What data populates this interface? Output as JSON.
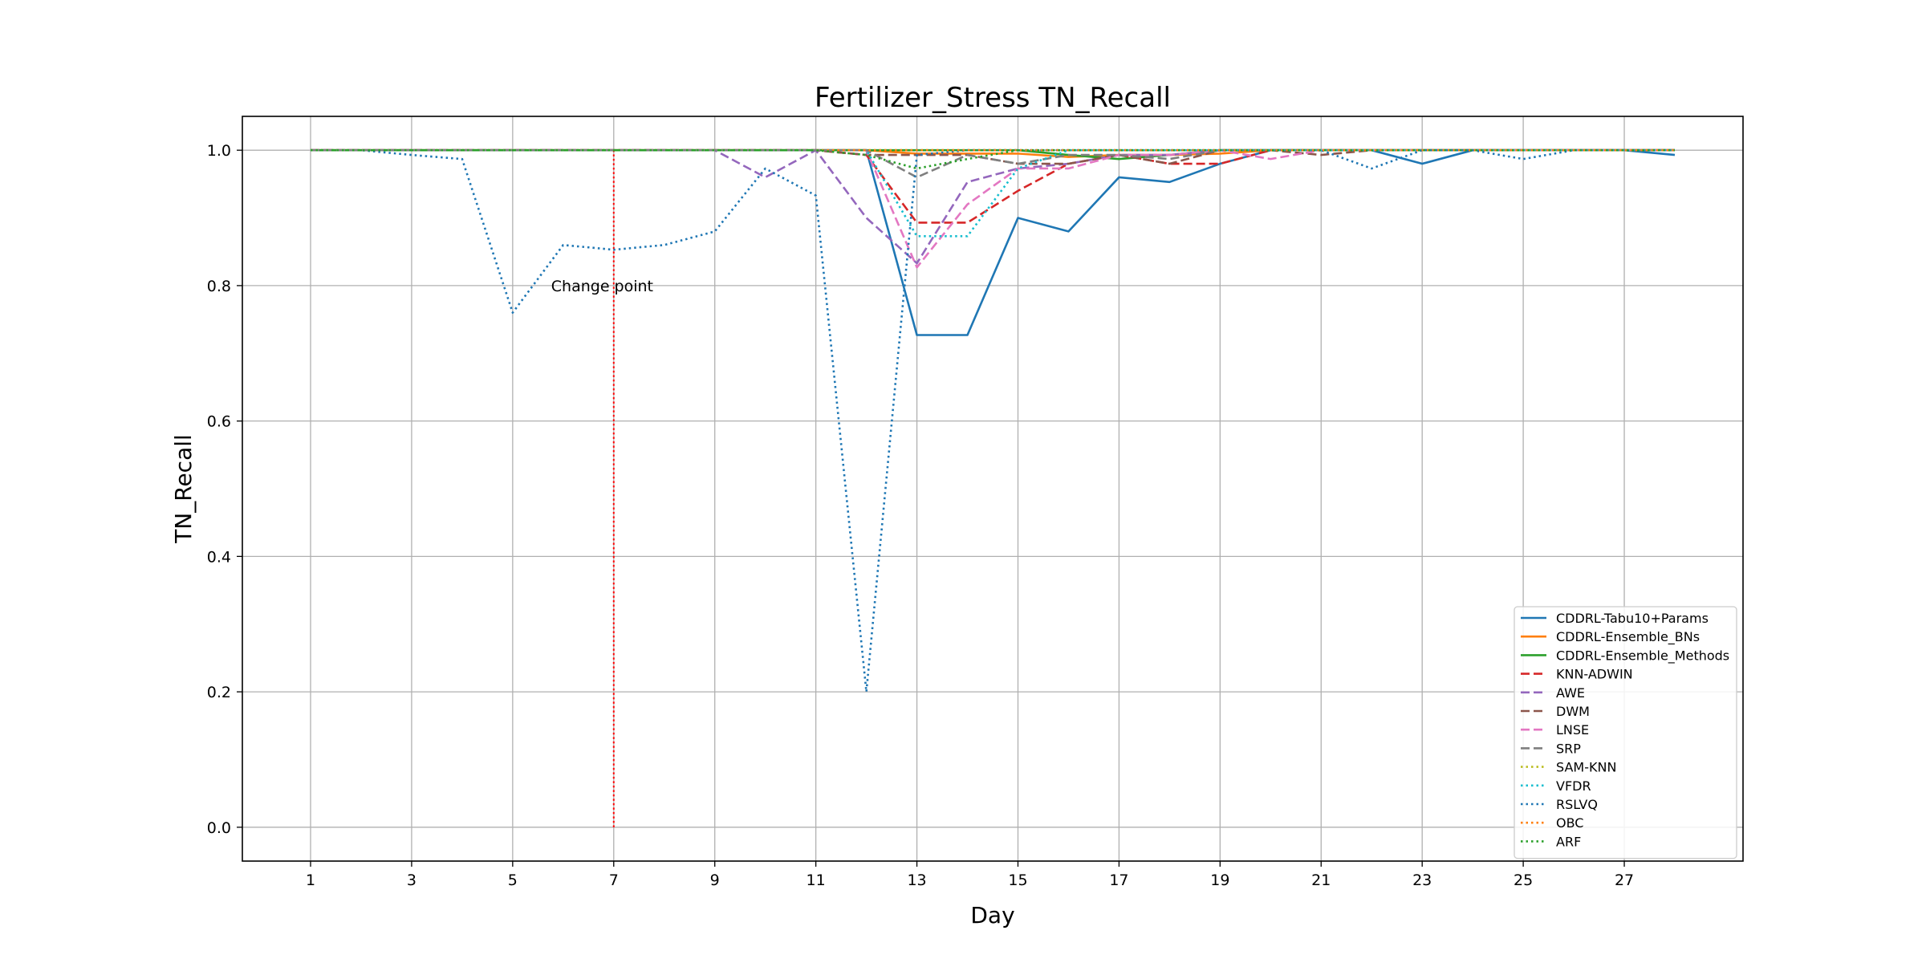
{
  "chart_data": {
    "type": "line",
    "title": "Fertilizer_Stress TN_Recall",
    "xlabel": "Day",
    "ylabel": "TN_Recall",
    "xlim": [
      -0.35,
      29.35
    ],
    "ylim": [
      -0.05,
      1.05
    ],
    "xticks": [
      1,
      3,
      5,
      7,
      9,
      11,
      13,
      15,
      17,
      19,
      21,
      23,
      25,
      27
    ],
    "yticks": [
      0.0,
      0.2,
      0.4,
      0.6,
      0.8,
      1.0
    ],
    "ytick_labels": [
      "0.0",
      "0.2",
      "0.4",
      "0.6",
      "0.8",
      "1.0"
    ],
    "grid": true,
    "legend_position": "lower-right",
    "x": [
      1,
      2,
      3,
      4,
      5,
      6,
      7,
      8,
      9,
      10,
      11,
      12,
      13,
      14,
      15,
      16,
      17,
      18,
      19,
      20,
      21,
      22,
      23,
      24,
      25,
      26,
      27,
      28
    ],
    "change_point": {
      "x": 7,
      "label": "Change point",
      "color": "#ff0000"
    },
    "series": [
      {
        "name": "CDDRL-Tabu10+Params",
        "color": "#1f77b4",
        "style": "solid",
        "values": [
          1,
          1,
          1,
          1,
          1,
          1,
          1,
          1,
          1,
          1,
          1,
          1,
          0.727,
          0.727,
          0.9,
          0.88,
          0.96,
          0.953,
          0.98,
          1,
          1,
          1,
          0.98,
          1,
          1,
          1,
          1,
          0.993
        ]
      },
      {
        "name": "CDDRL-Ensemble_BNs",
        "color": "#ff7f0e",
        "style": "solid",
        "values": [
          1,
          1,
          1,
          1,
          1,
          1,
          1,
          1,
          1,
          1,
          1,
          1,
          0.995,
          0.995,
          0.995,
          0.99,
          0.993,
          0.993,
          0.995,
          1,
          1,
          1,
          1,
          1,
          1,
          1,
          1,
          1
        ]
      },
      {
        "name": "CDDRL-Ensemble_Methods",
        "color": "#2ca02c",
        "style": "solid",
        "values": [
          1,
          1,
          1,
          1,
          1,
          1,
          1,
          1,
          1,
          1,
          1,
          1,
          1,
          1,
          1,
          0.993,
          0.987,
          0.993,
          1,
          1,
          1,
          1,
          1,
          1,
          1,
          1,
          1,
          1
        ]
      },
      {
        "name": "KNN-ADWIN",
        "color": "#d62728",
        "style": "dashed",
        "values": [
          1,
          1,
          1,
          1,
          1,
          1,
          1,
          1,
          1,
          1,
          1,
          0.993,
          0.893,
          0.893,
          0.94,
          0.98,
          0.993,
          0.98,
          0.98,
          1,
          1,
          1,
          1,
          1,
          1,
          1,
          1,
          1
        ]
      },
      {
        "name": "AWE",
        "color": "#9467bd",
        "style": "dashed",
        "values": [
          1,
          1,
          1,
          1,
          1,
          1,
          1,
          1,
          1,
          0.96,
          1,
          0.9,
          0.833,
          0.953,
          0.973,
          0.98,
          0.993,
          0.993,
          1,
          1,
          1,
          1,
          1,
          1,
          1,
          1,
          1,
          1
        ]
      },
      {
        "name": "DWM",
        "color": "#8c564b",
        "style": "dashed",
        "values": [
          1,
          1,
          1,
          1,
          1,
          1,
          1,
          1,
          1,
          1,
          1,
          0.993,
          0.993,
          0.993,
          0.98,
          0.98,
          0.993,
          0.98,
          1,
          1,
          0.993,
          1,
          1,
          1,
          1,
          1,
          1,
          1
        ]
      },
      {
        "name": "LNSE",
        "color": "#e377c2",
        "style": "dashed",
        "values": [
          1,
          1,
          1,
          1,
          1,
          1,
          1,
          1,
          1,
          1,
          1,
          1,
          0.827,
          0.92,
          0.973,
          0.973,
          0.993,
          0.993,
          1,
          0.987,
          1,
          1,
          1,
          1,
          1,
          1,
          1,
          1
        ]
      },
      {
        "name": "SRP",
        "color": "#7f7f7f",
        "style": "dashed",
        "values": [
          1,
          1,
          1,
          1,
          1,
          1,
          1,
          1,
          1,
          1,
          1,
          1,
          0.96,
          0.993,
          0.98,
          0.993,
          0.993,
          0.987,
          1,
          1,
          1,
          1,
          1,
          1,
          1,
          1,
          1,
          1
        ]
      },
      {
        "name": "SAM-KNN",
        "color": "#bcbd22",
        "style": "dotted",
        "values": [
          1,
          1,
          1,
          1,
          1,
          1,
          1,
          1,
          1,
          1,
          1,
          1,
          1,
          1,
          1,
          1,
          1,
          1,
          1,
          1,
          1,
          1,
          1,
          1,
          1,
          1,
          1,
          1
        ]
      },
      {
        "name": "VFDR",
        "color": "#17becf",
        "style": "dotted",
        "values": [
          1,
          1,
          1,
          1,
          1,
          1,
          1,
          1,
          1,
          1,
          1,
          1,
          0.873,
          0.873,
          0.973,
          1,
          1,
          1,
          1,
          1,
          1,
          1,
          1,
          1,
          1,
          1,
          1,
          1
        ]
      },
      {
        "name": "RSLVQ",
        "color": "#1f77b4",
        "style": "dotted",
        "values": [
          1,
          1,
          0.993,
          0.987,
          0.76,
          0.86,
          0.853,
          0.86,
          0.88,
          0.973,
          0.933,
          0.2,
          0.993,
          1,
          1,
          1,
          1,
          1,
          1,
          1,
          1,
          0.973,
          1,
          1,
          0.987,
          1,
          1,
          1
        ]
      },
      {
        "name": "OBC",
        "color": "#ff7f0e",
        "style": "dotted",
        "values": [
          1,
          1,
          1,
          1,
          1,
          1,
          1,
          1,
          1,
          1,
          1,
          1,
          1,
          1,
          1,
          1,
          1,
          1,
          1,
          1,
          1,
          1,
          1,
          1,
          1,
          1,
          1,
          1
        ]
      },
      {
        "name": "ARF",
        "color": "#2ca02c",
        "style": "dotted",
        "values": [
          1,
          1,
          1,
          1,
          1,
          1,
          1,
          1,
          1,
          1,
          1,
          0.993,
          0.973,
          0.987,
          1,
          1,
          1,
          1,
          1,
          1,
          1,
          1,
          1,
          1,
          1,
          1,
          1,
          1
        ]
      }
    ]
  }
}
